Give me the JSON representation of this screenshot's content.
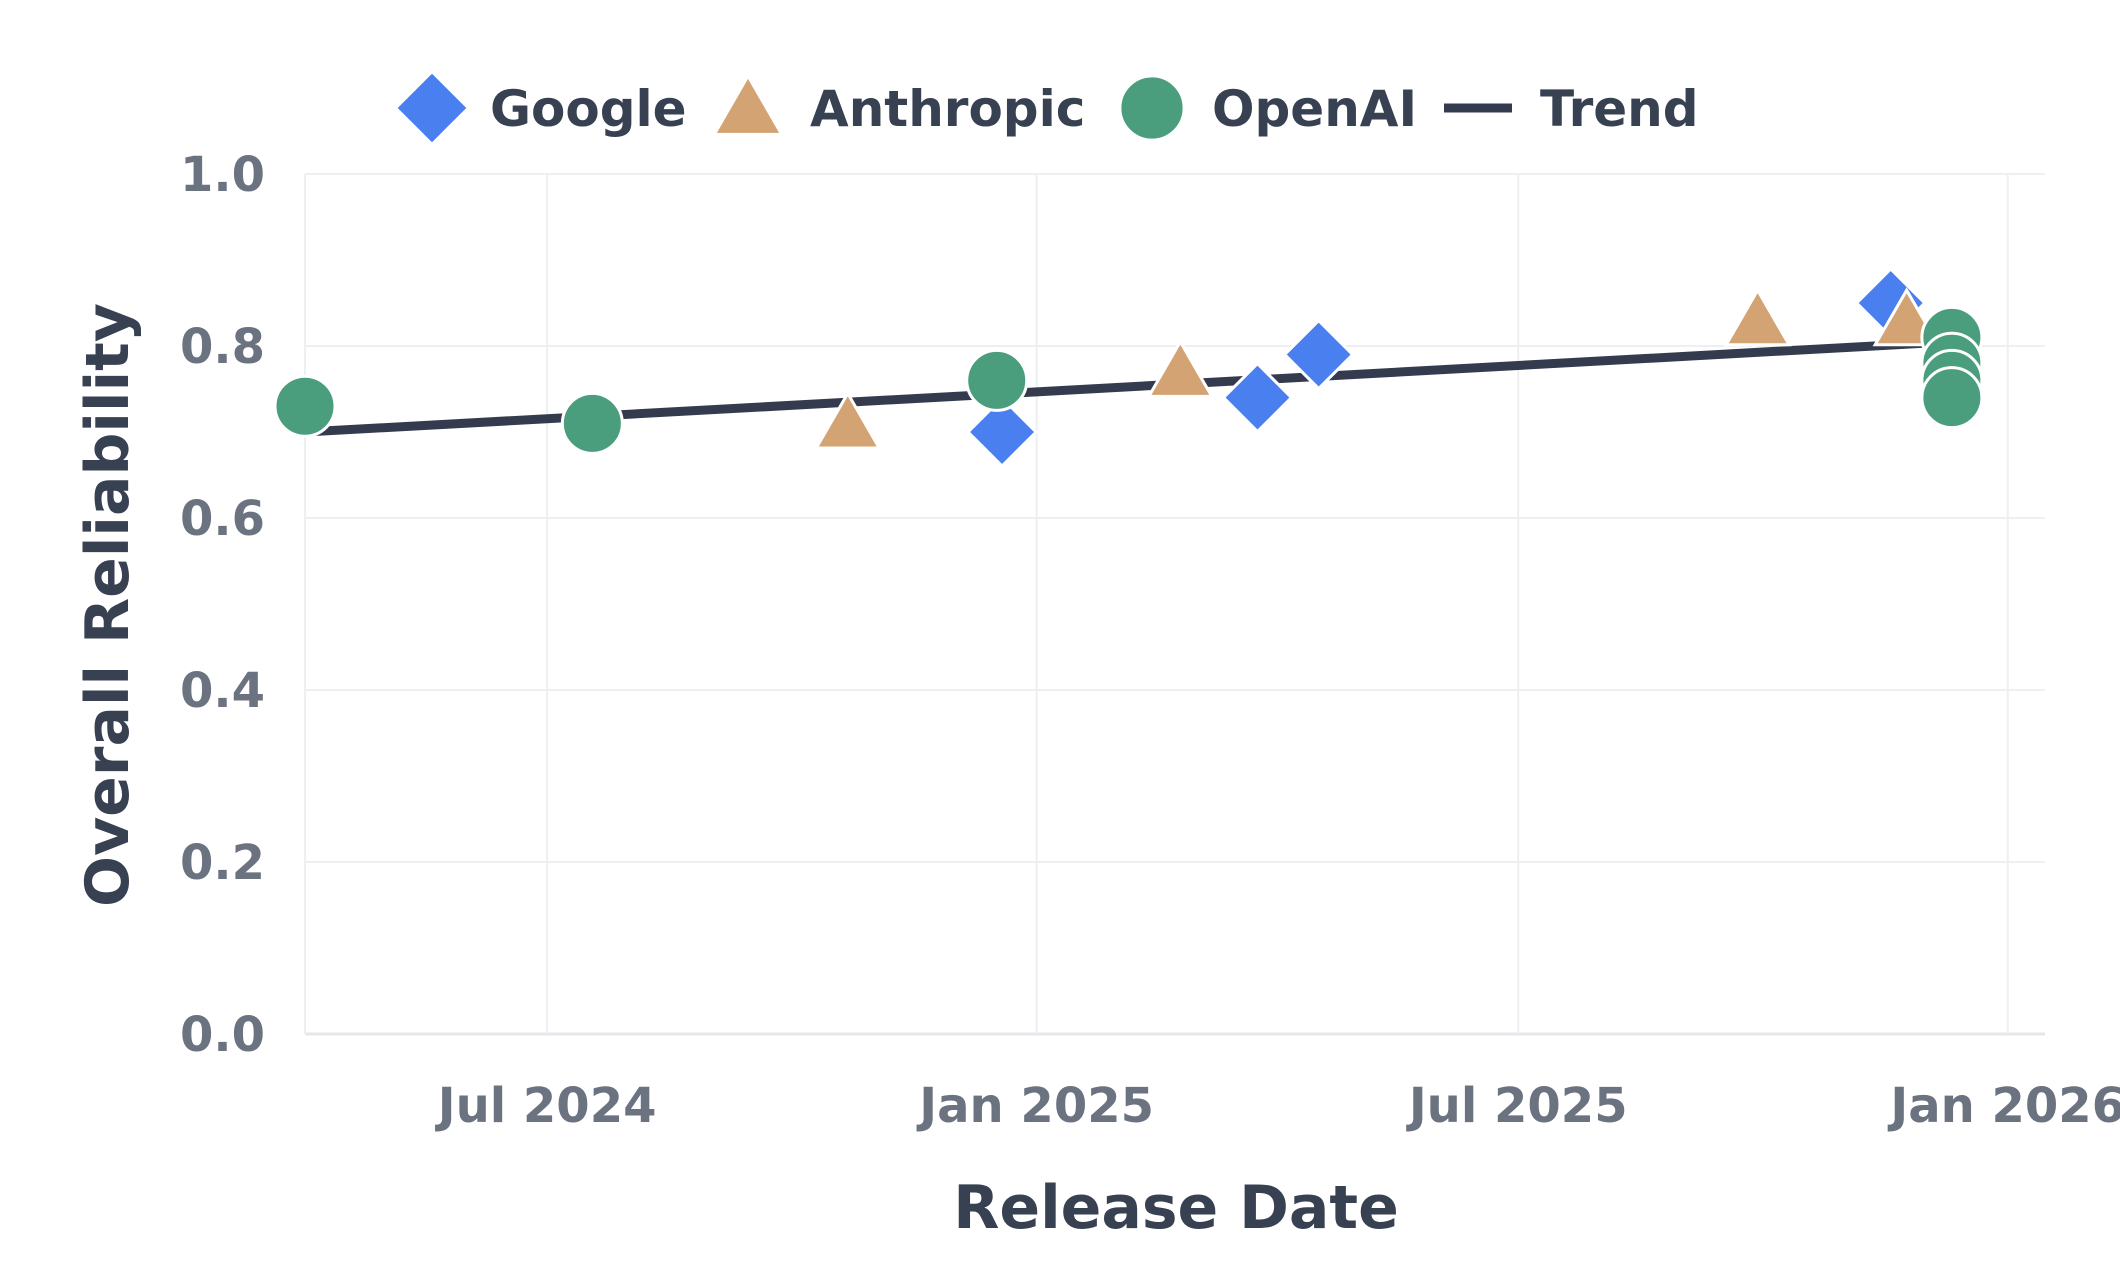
{
  "chart_data": {
    "type": "scatter",
    "x_axis": {
      "label": "Release Date",
      "type": "date",
      "range": [
        "2024-04-01",
        "2026-01-15"
      ],
      "ticks": [
        {
          "date": "2024-07-01",
          "label": "Jul 2024"
        },
        {
          "date": "2025-01-01",
          "label": "Jan 2025"
        },
        {
          "date": "2025-07-01",
          "label": "Jul 2025"
        },
        {
          "date": "2026-01-01",
          "label": "Jan 2026"
        }
      ]
    },
    "y_axis": {
      "label": "Overall Reliability",
      "range": [
        0,
        1
      ],
      "ticks": [
        {
          "value": 0.0,
          "label": "0.0"
        },
        {
          "value": 0.2,
          "label": "0.2"
        },
        {
          "value": 0.4,
          "label": "0.4"
        },
        {
          "value": 0.6,
          "label": "0.6"
        },
        {
          "value": 0.8,
          "label": "0.8"
        },
        {
          "value": 1.0,
          "label": "1.0"
        }
      ]
    },
    "grid": true,
    "legend": {
      "placement": "top"
    },
    "series": [
      {
        "name": "Google",
        "marker": "diamond",
        "color": "#4a7ff0",
        "points": [
          {
            "x": "2024-12-19",
            "y": 0.7
          },
          {
            "x": "2025-03-25",
            "y": 0.74
          },
          {
            "x": "2025-04-17",
            "y": 0.79
          },
          {
            "x": "2025-11-18",
            "y": 0.85
          }
        ]
      },
      {
        "name": "Anthropic",
        "marker": "triangle",
        "color": "#d4a373",
        "points": [
          {
            "x": "2024-10-22",
            "y": 0.71
          },
          {
            "x": "2025-02-24",
            "y": 0.77
          },
          {
            "x": "2025-09-29",
            "y": 0.83
          },
          {
            "x": "2025-11-24",
            "y": 0.83
          }
        ]
      },
      {
        "name": "OpenAI",
        "marker": "circle",
        "color": "#4a9e7d",
        "points": [
          {
            "x": "2024-04-01",
            "y": 0.73
          },
          {
            "x": "2024-07-18",
            "y": 0.71
          },
          {
            "x": "2024-12-17",
            "y": 0.76
          },
          {
            "x": "2025-12-11",
            "y": 0.81
          },
          {
            "x": "2025-12-11",
            "y": 0.78
          },
          {
            "x": "2025-12-11",
            "y": 0.76
          },
          {
            "x": "2025-12-11",
            "y": 0.74
          }
        ]
      },
      {
        "name": "Trend",
        "marker": "line",
        "color": "#343b4e",
        "points": [
          {
            "x": "2024-04-01",
            "y": 0.7
          },
          {
            "x": "2025-12-11",
            "y": 0.805
          }
        ]
      }
    ]
  }
}
